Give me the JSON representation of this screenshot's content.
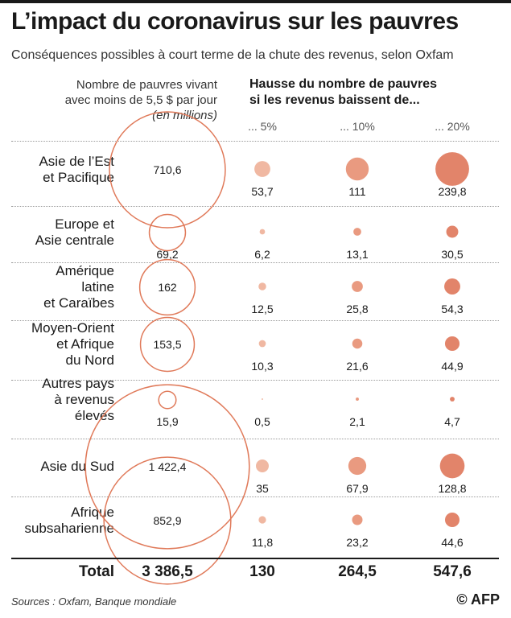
{
  "title": "L’impact du coronavirus sur les pauvres",
  "subtitle": "Conséquences possibles à court terme de la chute des revenus, selon Oxfam",
  "left_header": {
    "line1": "Nombre de pauvres vivant",
    "line2": "avec moins de 5,5 $ par jour",
    "line3": "(en millions)"
  },
  "right_header": {
    "line1": "Hausse du nombre de pauvres",
    "line2": "si les revenus baissent de..."
  },
  "colors": {
    "outline": "#e07a5a",
    "c5": "#f0b8a2",
    "c10": "#e99a80",
    "c20": "#e2846a"
  },
  "chart_data": {
    "type": "bubble-table",
    "title": "L’impact du coronavirus sur les pauvres",
    "columns": [
      "... 5%",
      "... 10%",
      "... 20%"
    ],
    "rows": [
      {
        "lines": [
          "Asie de l’Est",
          "et Pacifique"
        ],
        "base": 710.6,
        "base_label": "710,6",
        "inc": [
          53.7,
          111,
          239.8
        ],
        "inc_labels": [
          "53,7",
          "111",
          "239,8"
        ]
      },
      {
        "lines": [
          "Europe et",
          "Asie centrale"
        ],
        "base": 69.2,
        "base_label": "69,2",
        "inc": [
          6.2,
          13.1,
          30.5
        ],
        "inc_labels": [
          "6,2",
          "13,1",
          "30,5"
        ]
      },
      {
        "lines": [
          "Amérique",
          "latine",
          "et Caraïbes"
        ],
        "base": 162,
        "base_label": "162",
        "inc": [
          12.5,
          25.8,
          54.3
        ],
        "inc_labels": [
          "12,5",
          "25,8",
          "54,3"
        ]
      },
      {
        "lines": [
          "Moyen-Orient",
          "et Afrique",
          "du Nord"
        ],
        "base": 153.5,
        "base_label": "153,5",
        "inc": [
          10.3,
          21.6,
          44.9
        ],
        "inc_labels": [
          "10,3",
          "21,6",
          "44,9"
        ]
      },
      {
        "lines": [
          "Autres pays",
          "à revenus",
          "élevés"
        ],
        "base": 15.9,
        "base_label": "15,9",
        "inc": [
          0.5,
          2.1,
          4.7
        ],
        "inc_labels": [
          "0,5",
          "2,1",
          "4,7"
        ]
      },
      {
        "lines": [
          "Asie du Sud"
        ],
        "base": 1422.4,
        "base_label": "1 422,4",
        "inc": [
          35,
          67.9,
          128.8
        ],
        "inc_labels": [
          "35",
          "67,9",
          "128,8"
        ]
      },
      {
        "lines": [
          "Afrique",
          "subsaharienne"
        ],
        "base": 852.9,
        "base_label": "852,9",
        "inc": [
          11.8,
          23.2,
          44.6
        ],
        "inc_labels": [
          "11,8",
          "23,2",
          "44,6"
        ]
      }
    ],
    "total": {
      "label": "Total",
      "base": "3 386,5",
      "inc": [
        "130",
        "264,5",
        "547,6"
      ]
    }
  },
  "sources": "Sources : Oxfam, Banque mondiale",
  "credit": "© AFP"
}
